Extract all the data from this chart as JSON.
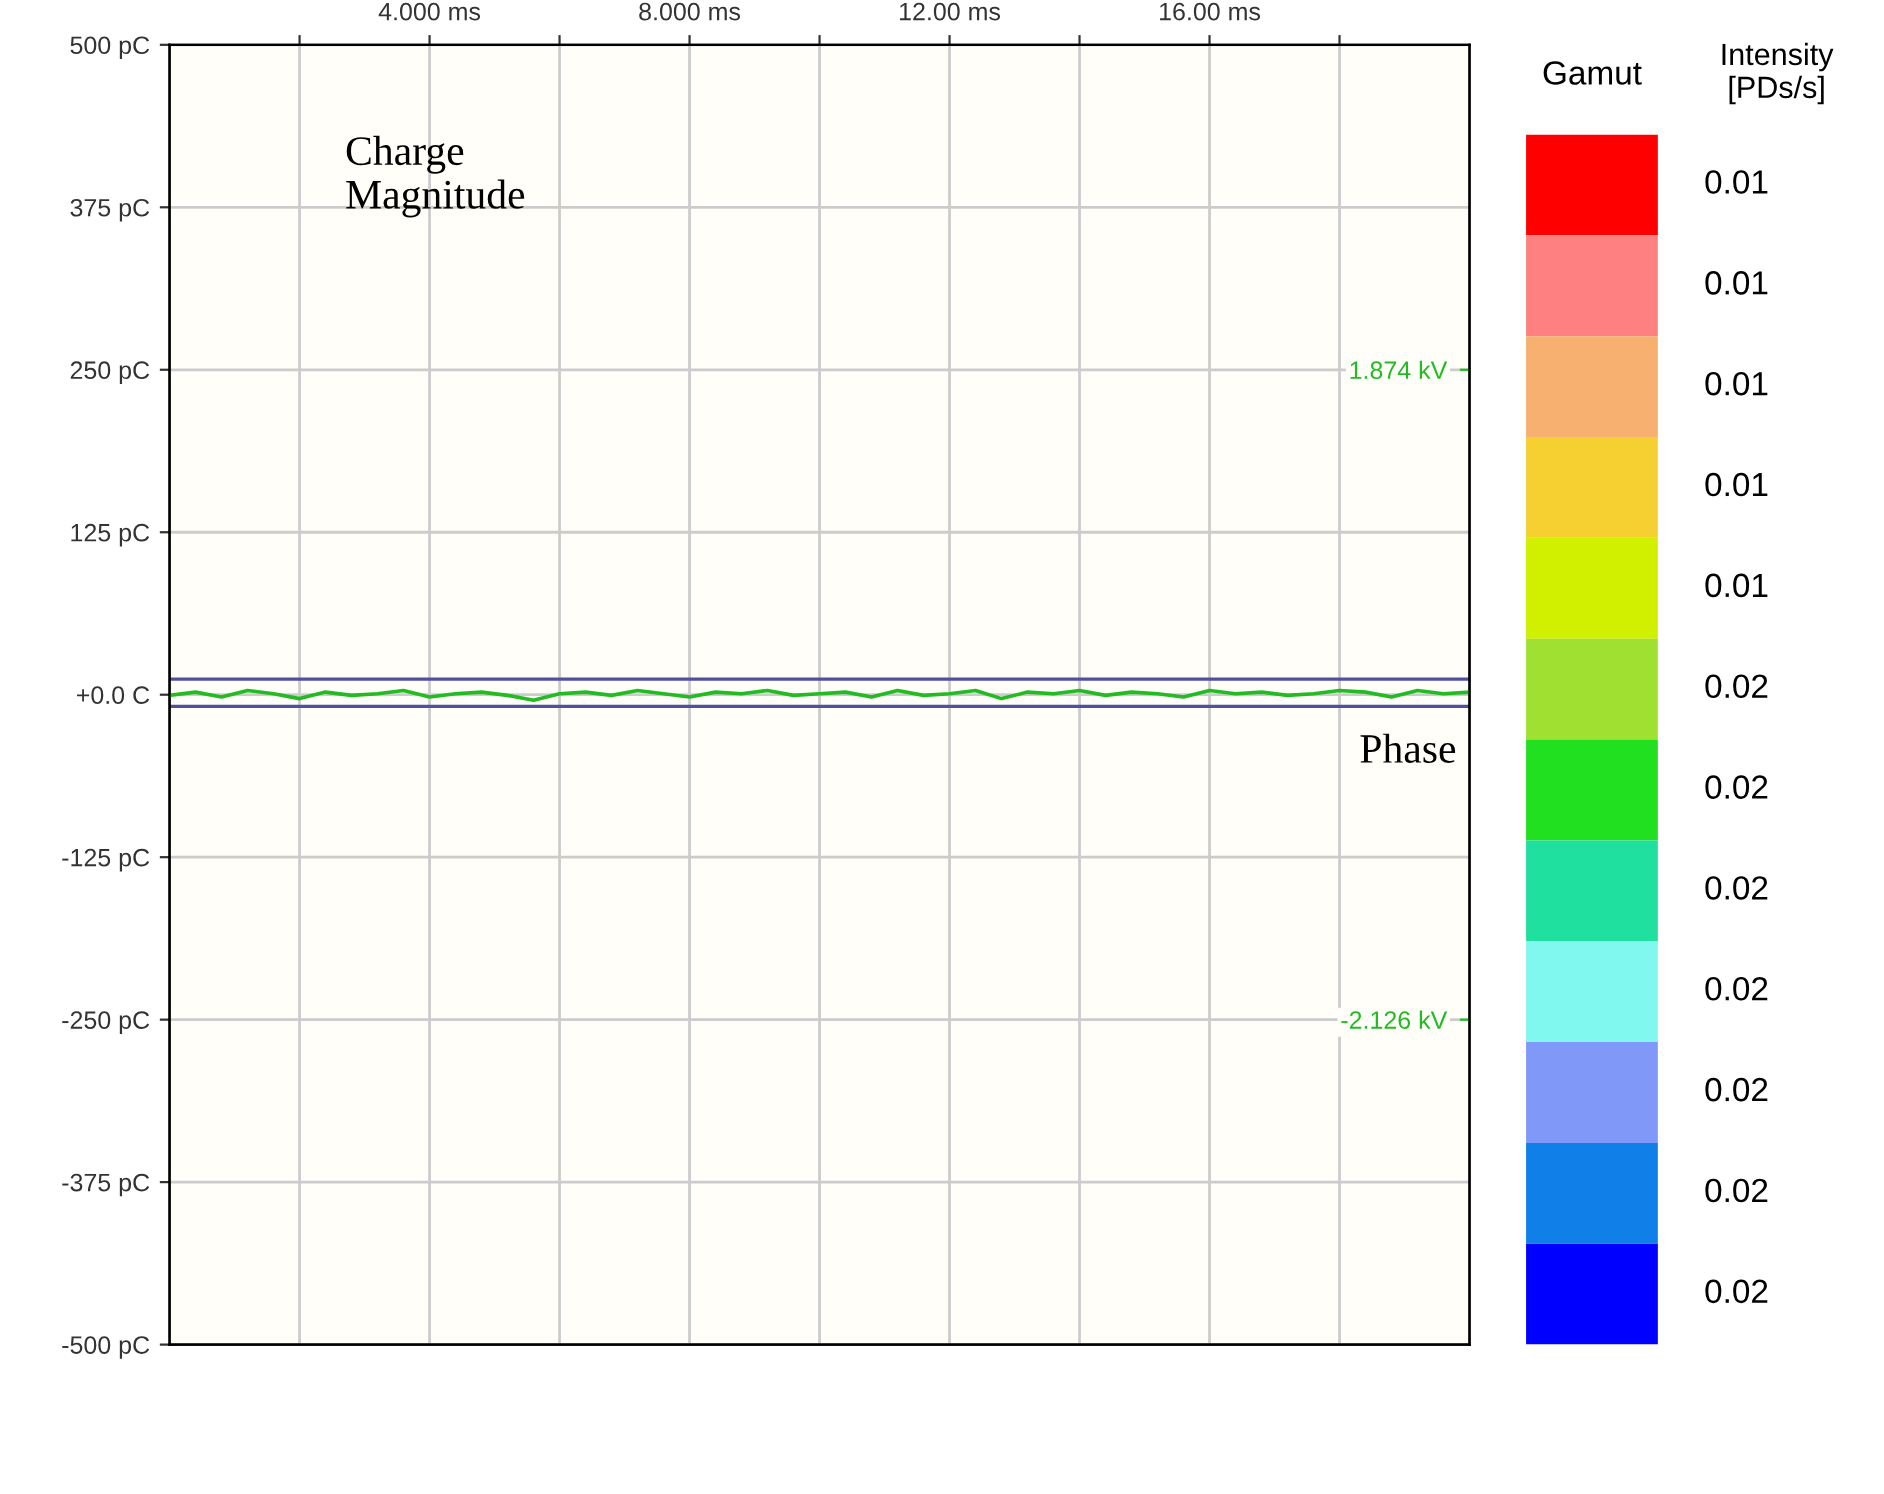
{
  "chart_data": [
    {
      "type": "line",
      "xlim": [
        0,
        20
      ],
      "ylim": [
        -500,
        500
      ],
      "y2lim": [
        -4.126,
        3.874
      ],
      "xticks": [
        {
          "value": 2,
          "label": null
        },
        {
          "value": 4,
          "label": "4.000 ms"
        },
        {
          "value": 6,
          "label": null
        },
        {
          "value": 8,
          "label": "8.000 ms"
        },
        {
          "value": 10,
          "label": null
        },
        {
          "value": 12,
          "label": "12.00 ms"
        },
        {
          "value": 14,
          "label": null
        },
        {
          "value": 16,
          "label": "16.00 ms"
        },
        {
          "value": 18,
          "label": null
        }
      ],
      "yticks": [
        {
          "value": 500,
          "label": "500 pC"
        },
        {
          "value": 375,
          "label": "375 pC"
        },
        {
          "value": 250,
          "label": "250 pC"
        },
        {
          "value": 125,
          "label": "125 pC"
        },
        {
          "value": 0,
          "label": "+0.0 C"
        },
        {
          "value": -125,
          "label": "-125 pC"
        },
        {
          "value": -250,
          "label": "-250 pC"
        },
        {
          "value": -375,
          "label": "-375 pC"
        },
        {
          "value": -500,
          "label": "-500 pC"
        }
      ],
      "y2ticks": [
        {
          "value": 1.874,
          "label": "1.874 kV"
        },
        {
          "value": -2.126,
          "label": "-2.126 kV"
        }
      ],
      "grid": true,
      "legend": false,
      "ref_lines": [
        {
          "axis": "y",
          "value": 12,
          "color": "#5050a0"
        },
        {
          "axis": "y",
          "value": -9,
          "color": "#5050a0"
        }
      ],
      "annotations": [
        "Charge\nMagnitude",
        "Phase"
      ],
      "series": [
        {
          "color": "#22bb22",
          "axis": "y2",
          "x": [
            0,
            0.4,
            0.8,
            1.2,
            1.6,
            2.0,
            2.4,
            2.8,
            3.2,
            3.6,
            4.0,
            4.4,
            4.8,
            5.2,
            5.6,
            6.0,
            6.4,
            6.8,
            7.2,
            7.6,
            8.0,
            8.4,
            8.8,
            9.2,
            9.6,
            10.0,
            10.4,
            10.8,
            11.2,
            11.6,
            12.0,
            12.4,
            12.8,
            13.2,
            13.6,
            14.0,
            14.4,
            14.8,
            15.2,
            15.6,
            16.0,
            16.4,
            16.8,
            17.2,
            17.6,
            18.0,
            18.4,
            18.8,
            19.2,
            19.6,
            20.0
          ],
          "values": [
            -0.13,
            -0.11,
            -0.14,
            -0.1,
            -0.12,
            -0.15,
            -0.11,
            -0.13,
            -0.12,
            -0.1,
            -0.14,
            -0.12,
            -0.11,
            -0.13,
            -0.16,
            -0.12,
            -0.11,
            -0.13,
            -0.1,
            -0.12,
            -0.14,
            -0.11,
            -0.12,
            -0.1,
            -0.13,
            -0.12,
            -0.11,
            -0.14,
            -0.1,
            -0.13,
            -0.12,
            -0.1,
            -0.15,
            -0.11,
            -0.12,
            -0.1,
            -0.13,
            -0.11,
            -0.12,
            -0.14,
            -0.1,
            -0.12,
            -0.11,
            -0.13,
            -0.12,
            -0.1,
            -0.11,
            -0.14,
            -0.1,
            -0.12,
            -0.11
          ]
        }
      ]
    },
    {
      "type": "other",
      "title": "Gamut",
      "legend_title": "Intensity\n[PDs/s]",
      "data_labels": true,
      "values": [
        0.01,
        0.01,
        0.01,
        0.01,
        0.01,
        0.02,
        0.02,
        0.02,
        0.02,
        0.02,
        0.02,
        0.02
      ],
      "colors": [
        "#ff0000",
        "#ff8080",
        "#f8b070",
        "#f5d030",
        "#d0f000",
        "#a0e030",
        "#20e020",
        "#20e0a0",
        "#80f8f0",
        "#8098f8",
        "#1080e8",
        "#0000ff"
      ]
    }
  ]
}
